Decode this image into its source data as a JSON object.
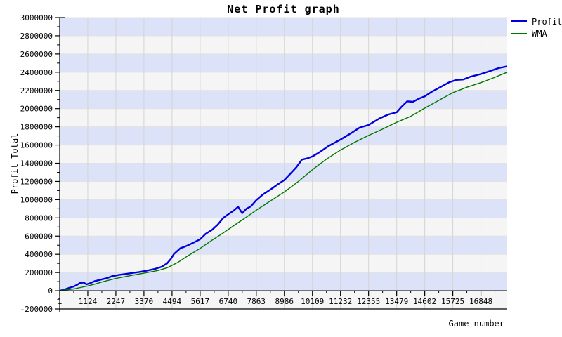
{
  "chart_data": {
    "type": "line",
    "title": "Net Profit graph",
    "xlabel": "Game number",
    "ylabel": "Profit Total",
    "xlim": [
      1,
      17900
    ],
    "ylim": [
      -200000,
      3000000
    ],
    "x_ticks": [
      1,
      1124,
      2247,
      3370,
      4494,
      5617,
      6740,
      7863,
      8986,
      10109,
      11232,
      12355,
      13479,
      14602,
      15725,
      16848
    ],
    "y_ticks": [
      -200000,
      0,
      200000,
      400000,
      600000,
      800000,
      1000000,
      1200000,
      1400000,
      1600000,
      1800000,
      2000000,
      2200000,
      2400000,
      2600000,
      2800000,
      3000000
    ],
    "grid": true,
    "legend_position": "top-right",
    "band_colors": {
      "even": "#dce3f8",
      "odd": "#f5f5f5"
    },
    "gridline_color_vertical": "#d4d4d4",
    "gridline_color_horizontal": "#e2e2e2",
    "axis_color": "#000000",
    "series": [
      {
        "name": "Profit",
        "color": "#0000dd",
        "width": 2.4,
        "points": [
          [
            1,
            0
          ],
          [
            140,
            8000
          ],
          [
            280,
            22000
          ],
          [
            420,
            35000
          ],
          [
            560,
            46000
          ],
          [
            700,
            65000
          ],
          [
            815,
            85000
          ],
          [
            955,
            90000
          ],
          [
            1070,
            70000
          ],
          [
            1180,
            78000
          ],
          [
            1405,
            105000
          ],
          [
            1685,
            125000
          ],
          [
            1880,
            138000
          ],
          [
            2105,
            160000
          ],
          [
            2390,
            175000
          ],
          [
            2670,
            185000
          ],
          [
            2950,
            196000
          ],
          [
            3230,
            207000
          ],
          [
            3510,
            222000
          ],
          [
            3790,
            238000
          ],
          [
            4070,
            262000
          ],
          [
            4295,
            300000
          ],
          [
            4435,
            345000
          ],
          [
            4575,
            405000
          ],
          [
            4720,
            440000
          ],
          [
            4830,
            468000
          ],
          [
            4970,
            480000
          ],
          [
            5140,
            500000
          ],
          [
            5365,
            530000
          ],
          [
            5615,
            565000
          ],
          [
            5840,
            625000
          ],
          [
            6095,
            668000
          ],
          [
            6320,
            725000
          ],
          [
            6545,
            800000
          ],
          [
            6770,
            845000
          ],
          [
            6965,
            880000
          ],
          [
            7135,
            922000
          ],
          [
            7300,
            852000
          ],
          [
            7470,
            900000
          ],
          [
            7640,
            925000
          ],
          [
            7865,
            995000
          ],
          [
            8145,
            1060000
          ],
          [
            8425,
            1110000
          ],
          [
            8705,
            1165000
          ],
          [
            8985,
            1215000
          ],
          [
            9210,
            1280000
          ],
          [
            9465,
            1355000
          ],
          [
            9690,
            1440000
          ],
          [
            9915,
            1455000
          ],
          [
            10110,
            1475000
          ],
          [
            10390,
            1520000
          ],
          [
            10755,
            1590000
          ],
          [
            11230,
            1660000
          ],
          [
            11655,
            1730000
          ],
          [
            11990,
            1790000
          ],
          [
            12355,
            1820000
          ],
          [
            12775,
            1890000
          ],
          [
            13140,
            1935000
          ],
          [
            13480,
            1960000
          ],
          [
            13675,
            2020000
          ],
          [
            13900,
            2080000
          ],
          [
            14125,
            2075000
          ],
          [
            14375,
            2110000
          ],
          [
            14600,
            2135000
          ],
          [
            14880,
            2185000
          ],
          [
            15220,
            2235000
          ],
          [
            15585,
            2290000
          ],
          [
            15865,
            2315000
          ],
          [
            16145,
            2320000
          ],
          [
            16425,
            2350000
          ],
          [
            16848,
            2380000
          ],
          [
            17185,
            2410000
          ],
          [
            17550,
            2445000
          ],
          [
            17900,
            2465000
          ]
        ]
      },
      {
        "name": "WMA",
        "color": "#007700",
        "width": 1.4,
        "points": [
          [
            1,
            0
          ],
          [
            560,
            20000
          ],
          [
            1120,
            52000
          ],
          [
            1405,
            72000
          ],
          [
            1685,
            95000
          ],
          [
            2245,
            135000
          ],
          [
            2810,
            165000
          ],
          [
            3370,
            193000
          ],
          [
            3930,
            222000
          ],
          [
            4300,
            252000
          ],
          [
            4720,
            310000
          ],
          [
            5140,
            385000
          ],
          [
            5615,
            465000
          ],
          [
            6040,
            545000
          ],
          [
            6545,
            635000
          ],
          [
            7020,
            725000
          ],
          [
            7500,
            815000
          ],
          [
            7865,
            885000
          ],
          [
            8425,
            985000
          ],
          [
            8985,
            1085000
          ],
          [
            9550,
            1200000
          ],
          [
            10110,
            1330000
          ],
          [
            10670,
            1445000
          ],
          [
            11230,
            1545000
          ],
          [
            11795,
            1630000
          ],
          [
            12355,
            1705000
          ],
          [
            12915,
            1775000
          ],
          [
            13480,
            1850000
          ],
          [
            14040,
            1915000
          ],
          [
            14600,
            2005000
          ],
          [
            15160,
            2090000
          ],
          [
            15725,
            2175000
          ],
          [
            16290,
            2235000
          ],
          [
            16848,
            2285000
          ],
          [
            17370,
            2340000
          ],
          [
            17900,
            2400000
          ]
        ]
      }
    ]
  }
}
